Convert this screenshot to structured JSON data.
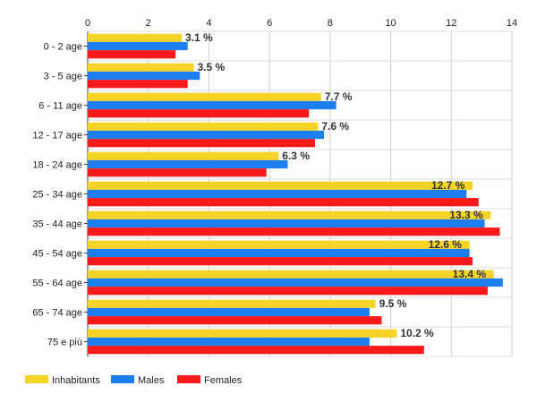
{
  "chart_data": {
    "type": "bar",
    "orientation": "horizontal",
    "title": "",
    "xlabel": "",
    "ylabel": "",
    "xlim": [
      0,
      14
    ],
    "xticks": [
      0,
      2,
      4,
      6,
      8,
      10,
      12,
      14
    ],
    "tick_labels": [
      "0",
      "2",
      "4",
      "6",
      "8",
      "10",
      "12",
      "14"
    ],
    "grid": true,
    "legend_position": "bottom-left",
    "categories": [
      "0 - 2 age",
      "3 - 5 age",
      "6 - 11 age",
      "12 - 17 age",
      "18 - 24 age",
      "25 - 34 age",
      "35 - 44 age",
      "45 - 54 age",
      "55 - 64 age",
      "65 - 74 age",
      "75 e più"
    ],
    "series": [
      {
        "name": "Inhabitants",
        "color": "#f5d327",
        "values": [
          3.1,
          3.5,
          7.7,
          7.6,
          6.3,
          12.7,
          13.3,
          12.6,
          13.4,
          9.5,
          10.2
        ]
      },
      {
        "name": "Males",
        "color": "#1c7ef0",
        "values": [
          3.3,
          3.7,
          8.2,
          7.8,
          6.6,
          12.5,
          13.1,
          12.6,
          13.7,
          9.3,
          9.3
        ]
      },
      {
        "name": "Females",
        "color": "#fb1a1a",
        "values": [
          2.9,
          3.3,
          7.3,
          7.5,
          5.9,
          12.9,
          13.6,
          12.7,
          13.2,
          9.7,
          11.1
        ]
      }
    ],
    "data_labels": [
      "3.1 %",
      "3.5 %",
      "7.7 %",
      "7.6 %",
      "6.3 %",
      "12.7 %",
      "13.3 %",
      "12.6 %",
      "13.4 %",
      "9.5 %",
      "10.2 %"
    ]
  }
}
